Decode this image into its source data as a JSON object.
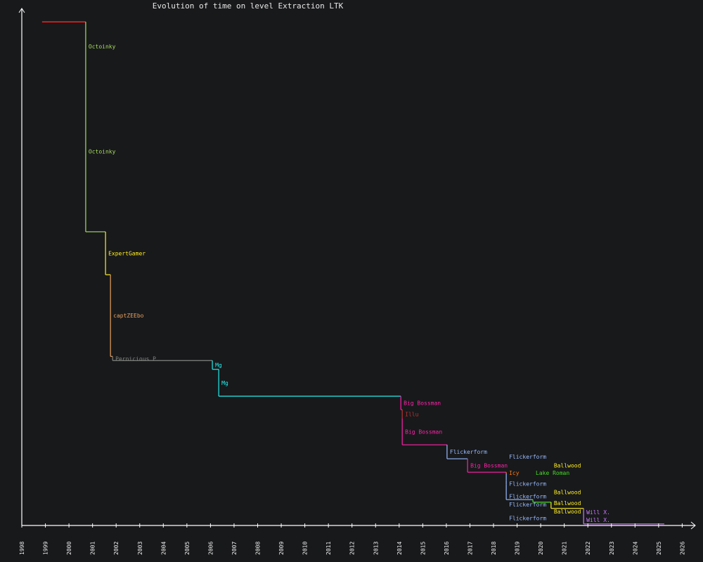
{
  "chart_data": {
    "type": "line",
    "style": "step",
    "title": "Evolution of time on level Extraction LTK",
    "xlabel": "",
    "ylabel": "",
    "xlim": [
      1998,
      2026.6
    ],
    "ylim": [
      0,
      100
    ],
    "x_ticks": [
      "1998",
      "1999",
      "2000",
      "2001",
      "2002",
      "2003",
      "2004",
      "2005",
      "2006",
      "2007",
      "2008",
      "2009",
      "2010",
      "2011",
      "2012",
      "2013",
      "2014",
      "2015",
      "2016",
      "2017",
      "2018",
      "2019",
      "2020",
      "2021",
      "2022",
      "2023",
      "2024",
      "2025",
      "2026"
    ],
    "end_date": 2025.24,
    "records": [
      {
        "date": 1998.86,
        "value": 97.4,
        "holder": "",
        "color": "#ff2020"
      },
      {
        "date": 2000.71,
        "value": 87.9,
        "holder": "Octoinky",
        "color": "#a8dd60"
      },
      {
        "date": 2000.71,
        "value": 56.8,
        "holder": "Octoinky",
        "color": "#a8dd60"
      },
      {
        "date": 2001.55,
        "value": 48.5,
        "holder": "ExpertGamer",
        "color": "#ffee22"
      },
      {
        "date": 2001.76,
        "value": 32.7,
        "holder": "captZEEbo",
        "color": "#e8a060"
      },
      {
        "date": 2001.85,
        "value": 31.9,
        "holder": "Pernicious P",
        "color": "#80847f"
      },
      {
        "date": 2006.08,
        "value": 30.2,
        "holder": "Mg",
        "color": "#22eeee"
      },
      {
        "date": 2006.35,
        "value": 25.0,
        "holder": "Mg",
        "color": "#22eeee"
      },
      {
        "date": 2014.07,
        "value": 22.4,
        "holder": "Big Bossman",
        "color": "#ff22aa"
      },
      {
        "date": 2014.13,
        "value": 20.7,
        "holder": "Illu",
        "color": "#bb3333"
      },
      {
        "date": 2014.13,
        "value": 15.6,
        "holder": "Big Bossman",
        "color": "#ff22aa"
      },
      {
        "date": 2016.03,
        "value": 12.9,
        "holder": "Flickerform",
        "color": "#99bbff"
      },
      {
        "date": 2016.9,
        "value": 10.3,
        "holder": "Big Bossman",
        "color": "#ff22aa"
      },
      {
        "date": 2018.54,
        "value": 10.1,
        "holder": "Icy",
        "color": "#ff7711"
      },
      {
        "date": 2018.54,
        "value": 8.8,
        "holder": "Flickerform",
        "color": "#99bbff"
      },
      {
        "date": 2018.54,
        "value": 7.9,
        "holder": "Flickerform",
        "color": "#99bbff"
      },
      {
        "date": 2018.54,
        "value": 5.7,
        "holder": "Flickerform",
        "color": "#99bbff"
      },
      {
        "date": 2018.54,
        "value": 5.3,
        "holder": "Flickerform",
        "color": "#99bbff"
      },
      {
        "date": 2018.54,
        "value": 5.0,
        "holder": "Flickerform",
        "color": "#99bbff"
      },
      {
        "date": 2019.67,
        "value": 4.5,
        "holder": "Lake Roman",
        "color": "#44dd22"
      },
      {
        "date": 2020.44,
        "value": 4.2,
        "holder": "Ballwood",
        "color": "#ffee22"
      },
      {
        "date": 2020.44,
        "value": 3.9,
        "holder": "Ballwood",
        "color": "#ffee22"
      },
      {
        "date": 2020.44,
        "value": 3.6,
        "holder": "Ballwood",
        "color": "#ffee22"
      },
      {
        "date": 2020.44,
        "value": 3.3,
        "holder": "Ballwood",
        "color": "#ffee22"
      },
      {
        "date": 2021.82,
        "value": 1.9,
        "holder": "Will X.",
        "color": "#cc77ff"
      },
      {
        "date": 2021.82,
        "value": 0.3,
        "holder": "Will X.",
        "color": "#cc77ff"
      }
    ]
  }
}
